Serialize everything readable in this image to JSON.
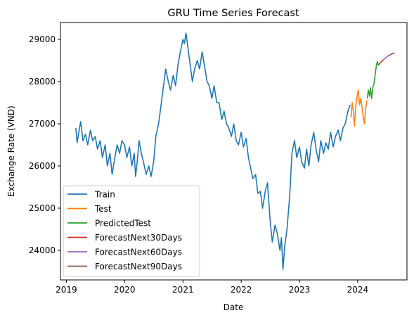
{
  "chart_data": {
    "type": "line",
    "title": "GRU Time Series Forecast",
    "xlabel": "Date",
    "ylabel": "Exchange Rate (VND)",
    "x_ticks": [
      "2019",
      "2020",
      "2021",
      "2022",
      "2023",
      "2024"
    ],
    "y_ticks": [
      "24000",
      "25000",
      "26000",
      "27000",
      "28000",
      "29000"
    ],
    "xlim": [
      "2018-11-25",
      "2024-11-05"
    ],
    "ylim": [
      23300,
      29400
    ],
    "grid": false,
    "legend_position": "lower-left",
    "series": [
      {
        "name": "Train",
        "color": "#1f77b4",
        "points": [
          [
            "2019-03-01",
            26900
          ],
          [
            "2019-03-10",
            26550
          ],
          [
            "2019-03-20",
            26800
          ],
          [
            "2019-04-01",
            27050
          ],
          [
            "2019-04-15",
            26600
          ],
          [
            "2019-05-01",
            26750
          ],
          [
            "2019-05-15",
            26500
          ],
          [
            "2019-06-01",
            26850
          ],
          [
            "2019-06-15",
            26600
          ],
          [
            "2019-07-01",
            26700
          ],
          [
            "2019-07-15",
            26400
          ],
          [
            "2019-08-01",
            26600
          ],
          [
            "2019-08-15",
            26200
          ],
          [
            "2019-09-01",
            26500
          ],
          [
            "2019-09-15",
            26000
          ],
          [
            "2019-10-01",
            26300
          ],
          [
            "2019-10-15",
            25800
          ],
          [
            "2019-11-01",
            26200
          ],
          [
            "2019-11-15",
            26500
          ],
          [
            "2019-12-01",
            26300
          ],
          [
            "2019-12-15",
            26600
          ],
          [
            "2020-01-01",
            26500
          ],
          [
            "2020-01-15",
            26200
          ],
          [
            "2020-02-01",
            26450
          ],
          [
            "2020-02-15",
            26000
          ],
          [
            "2020-03-01",
            26300
          ],
          [
            "2020-03-10",
            25750
          ],
          [
            "2020-03-20",
            26100
          ],
          [
            "2020-04-01",
            26600
          ],
          [
            "2020-04-15",
            26300
          ],
          [
            "2020-05-01",
            26050
          ],
          [
            "2020-05-15",
            25800
          ],
          [
            "2020-06-01",
            26000
          ],
          [
            "2020-06-15",
            25750
          ],
          [
            "2020-07-01",
            26100
          ],
          [
            "2020-07-15",
            26700
          ],
          [
            "2020-08-01",
            27000
          ],
          [
            "2020-08-15",
            27400
          ],
          [
            "2020-09-01",
            27900
          ],
          [
            "2020-09-15",
            28300
          ],
          [
            "2020-10-01",
            28000
          ],
          [
            "2020-10-15",
            27800
          ],
          [
            "2020-11-01",
            28150
          ],
          [
            "2020-11-15",
            27900
          ],
          [
            "2020-12-01",
            28400
          ],
          [
            "2020-12-15",
            28700
          ],
          [
            "2021-01-01",
            29000
          ],
          [
            "2021-01-10",
            28900
          ],
          [
            "2021-01-20",
            29150
          ],
          [
            "2021-02-01",
            28800
          ],
          [
            "2021-02-15",
            28400
          ],
          [
            "2021-03-01",
            28000
          ],
          [
            "2021-03-15",
            28300
          ],
          [
            "2021-04-01",
            28500
          ],
          [
            "2021-04-15",
            28300
          ],
          [
            "2021-05-01",
            28700
          ],
          [
            "2021-05-15",
            28400
          ],
          [
            "2021-06-01",
            28000
          ],
          [
            "2021-06-15",
            27900
          ],
          [
            "2021-07-01",
            27600
          ],
          [
            "2021-07-15",
            27900
          ],
          [
            "2021-08-01",
            27500
          ],
          [
            "2021-08-15",
            27500
          ],
          [
            "2021-09-01",
            27100
          ],
          [
            "2021-09-15",
            27300
          ],
          [
            "2021-10-01",
            27000
          ],
          [
            "2021-10-15",
            26900
          ],
          [
            "2021-11-01",
            26700
          ],
          [
            "2021-11-15",
            27000
          ],
          [
            "2021-12-01",
            26600
          ],
          [
            "2021-12-15",
            26500
          ],
          [
            "2022-01-01",
            26800
          ],
          [
            "2022-01-15",
            26450
          ],
          [
            "2022-02-01",
            26650
          ],
          [
            "2022-02-15",
            26200
          ],
          [
            "2022-03-01",
            25950
          ],
          [
            "2022-03-15",
            25700
          ],
          [
            "2022-04-01",
            25800
          ],
          [
            "2022-04-15",
            25350
          ],
          [
            "2022-05-01",
            25400
          ],
          [
            "2022-05-15",
            25000
          ],
          [
            "2022-06-01",
            25400
          ],
          [
            "2022-06-15",
            25600
          ],
          [
            "2022-07-01",
            24700
          ],
          [
            "2022-07-15",
            24200
          ],
          [
            "2022-08-01",
            24600
          ],
          [
            "2022-08-15",
            24400
          ],
          [
            "2022-09-01",
            24000
          ],
          [
            "2022-09-10",
            24300
          ],
          [
            "2022-09-20",
            23550
          ],
          [
            "2022-10-01",
            24100
          ],
          [
            "2022-10-15",
            24500
          ],
          [
            "2022-11-01",
            25300
          ],
          [
            "2022-11-15",
            26300
          ],
          [
            "2022-12-01",
            26600
          ],
          [
            "2022-12-15",
            26200
          ],
          [
            "2023-01-01",
            26450
          ],
          [
            "2023-01-15",
            26100
          ],
          [
            "2023-02-01",
            25950
          ],
          [
            "2023-02-15",
            26400
          ],
          [
            "2023-03-01",
            26000
          ],
          [
            "2023-03-15",
            26500
          ],
          [
            "2023-04-01",
            26800
          ],
          [
            "2023-04-15",
            26400
          ],
          [
            "2023-05-01",
            26100
          ],
          [
            "2023-05-15",
            26600
          ],
          [
            "2023-06-01",
            26300
          ],
          [
            "2023-06-15",
            26550
          ],
          [
            "2023-07-01",
            26400
          ],
          [
            "2023-07-15",
            26800
          ],
          [
            "2023-08-01",
            26450
          ],
          [
            "2023-08-15",
            26700
          ],
          [
            "2023-09-01",
            26850
          ],
          [
            "2023-09-15",
            26600
          ],
          [
            "2023-10-01",
            26900
          ],
          [
            "2023-10-15",
            27000
          ],
          [
            "2023-11-01",
            27300
          ],
          [
            "2023-11-15",
            27450
          ]
        ]
      },
      {
        "name": "Test",
        "color": "#ff7f0e",
        "points": [
          [
            "2023-11-20",
            27150
          ],
          [
            "2023-11-28",
            27500
          ],
          [
            "2023-12-05",
            27300
          ],
          [
            "2023-12-12",
            26950
          ],
          [
            "2023-12-20",
            27400
          ],
          [
            "2023-12-28",
            27650
          ],
          [
            "2024-01-05",
            27800
          ],
          [
            "2024-01-12",
            27450
          ],
          [
            "2024-01-20",
            27600
          ],
          [
            "2024-01-28",
            27400
          ],
          [
            "2024-02-05",
            27150
          ],
          [
            "2024-02-12",
            27000
          ],
          [
            "2024-02-20",
            27350
          ],
          [
            "2024-02-28",
            27550
          ]
        ]
      },
      {
        "name": "PredictedTest",
        "color": "#2ca02c",
        "points": [
          [
            "2024-03-01",
            27600
          ],
          [
            "2024-03-08",
            27800
          ],
          [
            "2024-03-15",
            27650
          ],
          [
            "2024-03-22",
            27850
          ],
          [
            "2024-03-29",
            27600
          ],
          [
            "2024-04-05",
            27850
          ],
          [
            "2024-04-12",
            27950
          ],
          [
            "2024-04-19",
            28150
          ],
          [
            "2024-04-26",
            28350
          ],
          [
            "2024-05-03",
            28480
          ],
          [
            "2024-05-10",
            28380
          ]
        ]
      },
      {
        "name": "ForecastNext30Days",
        "color": "#d62728",
        "points": [
          [
            "2024-05-12",
            28400
          ],
          [
            "2024-05-20",
            28440
          ],
          [
            "2024-05-28",
            28470
          ],
          [
            "2024-06-05",
            28500
          ],
          [
            "2024-06-11",
            28520
          ]
        ]
      },
      {
        "name": "ForecastNext60Days",
        "color": "#9467bd",
        "points": [
          [
            "2024-06-11",
            28520
          ],
          [
            "2024-06-20",
            28550
          ],
          [
            "2024-06-30",
            28580
          ],
          [
            "2024-07-11",
            28610
          ]
        ]
      },
      {
        "name": "ForecastNext90Days",
        "color": "#8c564b",
        "points": [
          [
            "2024-07-11",
            28610
          ],
          [
            "2024-07-20",
            28630
          ],
          [
            "2024-07-30",
            28650
          ],
          [
            "2024-08-10",
            28670
          ],
          [
            "2024-08-20",
            28680
          ]
        ]
      }
    ]
  }
}
